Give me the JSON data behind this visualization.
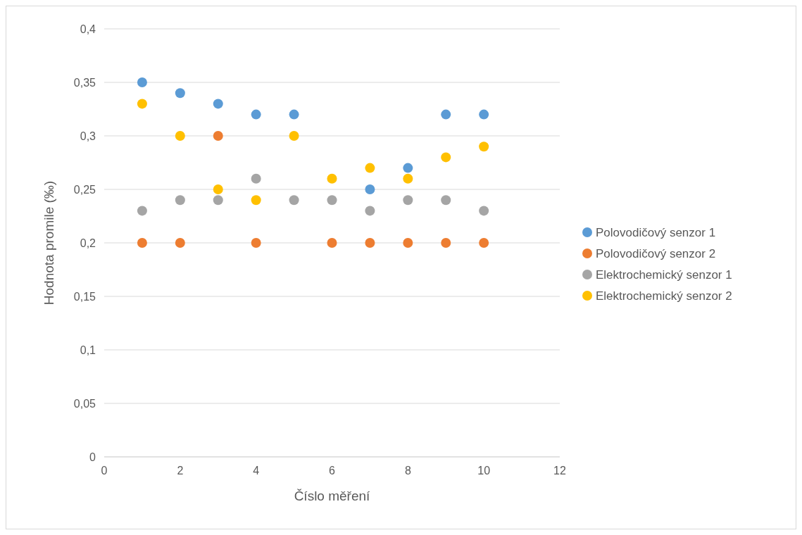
{
  "chart_data": {
    "type": "scatter",
    "xlabel": "Číslo měření",
    "ylabel": "Hodnota promile (‰)",
    "x": [
      1,
      2,
      3,
      4,
      5,
      6,
      7,
      8,
      9,
      10
    ],
    "series": [
      {
        "name": "Polovodičový senzor 1",
        "color": "#5b9bd5",
        "values": [
          0.35,
          0.34,
          0.33,
          0.32,
          0.32,
          null,
          0.25,
          0.27,
          0.32,
          0.32
        ]
      },
      {
        "name": "Polovodičový senzor 2",
        "color": "#ed7d31",
        "values": [
          0.2,
          0.2,
          0.3,
          0.2,
          null,
          0.2,
          0.2,
          0.2,
          0.2,
          0.2
        ]
      },
      {
        "name": "Elektrochemický senzor 1",
        "color": "#a5a5a5",
        "values": [
          0.23,
          0.24,
          0.24,
          0.26,
          0.24,
          0.24,
          0.23,
          0.24,
          0.24,
          0.23
        ]
      },
      {
        "name": "Elektrochemický senzor 2",
        "color": "#ffc000",
        "values": [
          0.33,
          0.3,
          0.25,
          0.24,
          0.3,
          0.26,
          0.27,
          0.26,
          0.28,
          0.29
        ]
      }
    ],
    "xlim": [
      0,
      12
    ],
    "xticks": [
      0,
      2,
      4,
      6,
      8,
      10,
      12
    ],
    "ylim": [
      0,
      0.4
    ],
    "yticks": [
      0,
      {
        "value": 0.05,
        "label": "0,05"
      },
      {
        "value": 0.1,
        "label": "0,1"
      },
      {
        "value": 0.15,
        "label": "0,15"
      },
      {
        "value": 0.2,
        "label": "0,2"
      },
      {
        "value": 0.25,
        "label": "0,25"
      },
      {
        "value": 0.3,
        "label": "0,3"
      },
      {
        "value": 0.35,
        "label": "0,35"
      },
      {
        "value": 0.4,
        "label": "0,4"
      }
    ],
    "grid": "y",
    "legend": "right",
    "marker": "circle"
  }
}
